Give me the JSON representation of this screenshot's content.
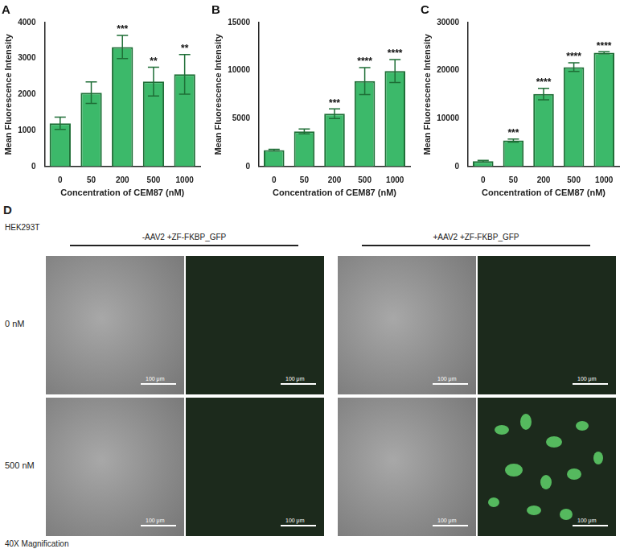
{
  "chart_data": [
    {
      "type": "bar",
      "title": "A",
      "x_label": "Concentration of CEM87 (nM)",
      "y_label": "Mean Fluorescence Intensity",
      "categories": [
        "0",
        "50",
        "200",
        "500",
        "1000"
      ],
      "values": [
        1200,
        2050,
        3320,
        2360,
        2560
      ],
      "errors": [
        170,
        300,
        320,
        400,
        550
      ],
      "annotations": [
        null,
        null,
        "***",
        "**",
        "**"
      ],
      "color": "#3cb96a",
      "ylim": [
        0,
        4000
      ],
      "yticks": [
        0,
        1000,
        2000,
        3000,
        4000
      ],
      "grid": false
    },
    {
      "type": "bar",
      "title": "B",
      "x_label": "Concentration of CEM87 (nM)",
      "y_label": "Mean Fluorescence Intensity",
      "categories": [
        "0",
        "50",
        "200",
        "500",
        "1000"
      ],
      "values": [
        1700,
        3650,
        5500,
        8900,
        9950
      ],
      "errors": [
        80,
        250,
        500,
        1400,
        1200
      ],
      "annotations": [
        null,
        null,
        "***",
        "****",
        "****"
      ],
      "color": "#3cb96a",
      "ylim": [
        0,
        15000
      ],
      "yticks": [
        0,
        5000,
        10000,
        15000
      ],
      "grid": false
    },
    {
      "type": "bar",
      "title": "C",
      "x_label": "Concentration of CEM87 (nM)",
      "y_label": "Mean Fluorescence Intensity",
      "categories": [
        "0",
        "50",
        "200",
        "500",
        "1000"
      ],
      "values": [
        1100,
        5400,
        15100,
        20700,
        23700
      ],
      "errors": [
        150,
        300,
        1200,
        900,
        200
      ],
      "annotations": [
        null,
        "***",
        "****",
        "****",
        "****"
      ],
      "color": "#3cb96a",
      "ylim": [
        0,
        30000
      ],
      "yticks": [
        0,
        10000,
        20000,
        30000
      ],
      "grid": false
    }
  ],
  "panel_d": {
    "label": "D",
    "cell_line": "HEK293T",
    "conditions": [
      "-AAV2 +ZF-FKBP_GFP",
      "+AAV2 +ZF-FKBP_GFP"
    ],
    "rows": [
      "0 nM",
      "500 nM"
    ],
    "gfp_positive": [
      [
        false,
        false
      ],
      [
        false,
        true
      ]
    ],
    "scale_bar": "100 μm",
    "magnification": "40X Magnification"
  }
}
